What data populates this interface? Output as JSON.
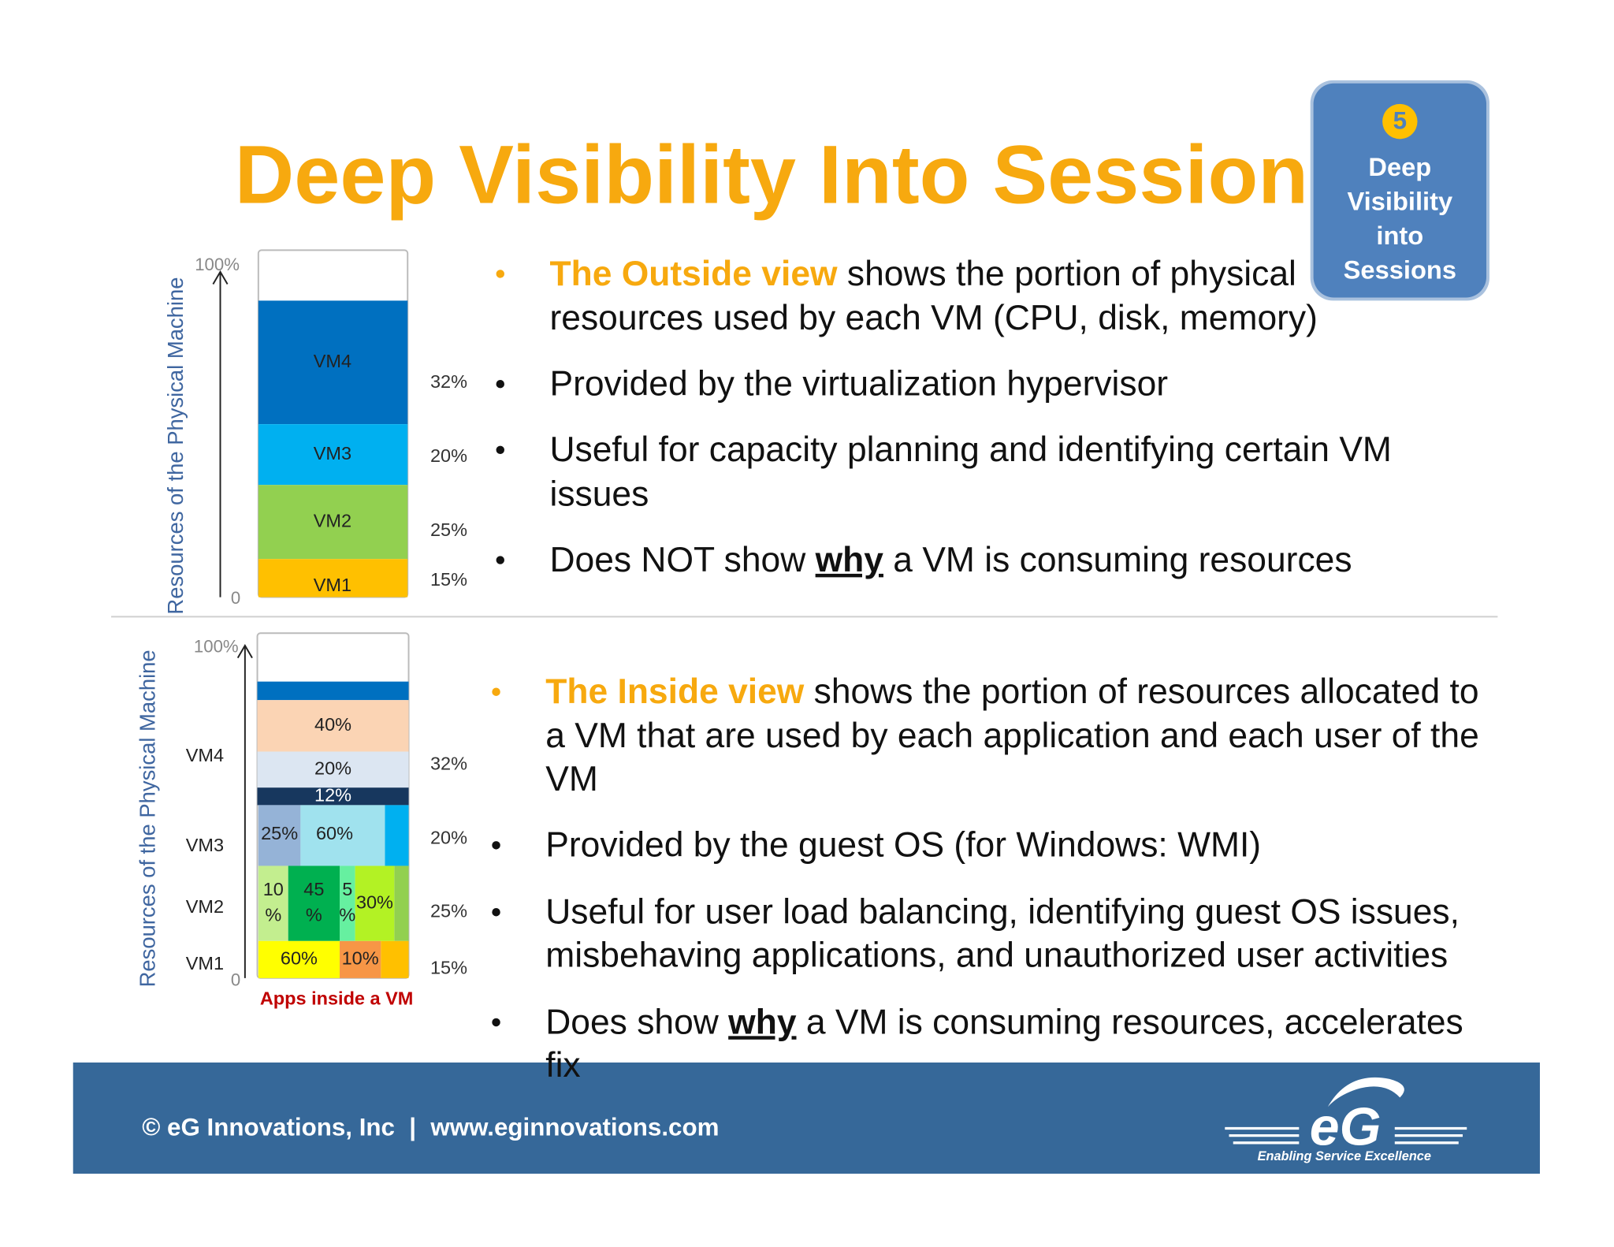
{
  "title": "Deep Visibility Into Sessions",
  "badge": {
    "number": "5",
    "label": [
      "Deep",
      "Visibility",
      "into",
      "Sessions"
    ]
  },
  "outside_chart": {
    "axis_title": "Resources of the Physical Machine",
    "top": "100%",
    "bottom": "0",
    "segments": [
      {
        "label": "VM4",
        "share": "32%"
      },
      {
        "label": "VM3",
        "share": "20%"
      },
      {
        "label": "VM2",
        "share": "25%"
      },
      {
        "label": "VM1",
        "share": "15%"
      }
    ]
  },
  "inside_chart": {
    "axis_title": "Resources of the Physical Machine",
    "top": "100%",
    "bottom": "0",
    "caption": "Apps inside a VM",
    "rows": [
      {
        "label": "VM4",
        "share": "32%",
        "apps": [
          [
            "40%"
          ],
          [
            "20%"
          ],
          [
            "12%"
          ]
        ]
      },
      {
        "label": "VM3",
        "share": "20%",
        "apps": [
          [
            "25%"
          ],
          [
            "60%"
          ]
        ]
      },
      {
        "label": "VM2",
        "share": "25%",
        "apps": [
          [
            "10",
            "%"
          ],
          [
            "45",
            "%"
          ],
          [
            "5",
            "%"
          ],
          [
            "30%"
          ]
        ]
      },
      {
        "label": "VM1",
        "share": "15%",
        "apps": [
          [
            "60%"
          ],
          [
            "10%"
          ]
        ]
      }
    ]
  },
  "outside_bullets": [
    [
      [
        {
          "text": "The Outside view",
          "style": "highlight"
        },
        {
          "text": " shows the portion of physical"
        }
      ],
      [
        {
          "text": "resources used by each VM (CPU, disk, memory)"
        }
      ]
    ],
    [
      [
        {
          "text": "Provided by the virtualization hypervisor"
        }
      ]
    ],
    [
      [
        {
          "text": "Useful for capacity planning and identifying certain VM"
        }
      ],
      [
        {
          "text": "issues"
        }
      ]
    ],
    [
      [
        {
          "text": "Does NOT show "
        },
        {
          "text": "why",
          "style": "emphasis"
        },
        {
          "text": " a VM is consuming resources"
        }
      ]
    ]
  ],
  "inside_bullets": [
    [
      [
        {
          "text": "The Inside view",
          "style": "highlight"
        },
        {
          "text": " shows the portion of resources allocated to"
        }
      ],
      [
        {
          "text": "a VM that are used by each application and each user of the"
        }
      ],
      [
        {
          "text": "VM"
        }
      ]
    ],
    [
      [
        {
          "text": "Provided by the guest OS (for Windows: WMI)"
        }
      ]
    ],
    [
      [
        {
          "text": "Useful for user load balancing, identifying guest OS issues,"
        }
      ],
      [
        {
          "text": "misbehaving applications, and unauthorized user activities"
        }
      ]
    ],
    [
      [
        {
          "text": "Does show "
        },
        {
          "text": "why",
          "style": "emphasis"
        },
        {
          "text": " a VM is consuming resources, accelerates"
        }
      ],
      [
        {
          "text": "fix"
        }
      ]
    ]
  ],
  "footer": {
    "company": "© eG Innovations, Inc",
    "separator": "|",
    "website": "www.eginnovations.com",
    "logo": "eG",
    "tagline": "Enabling Service Excellence"
  }
}
